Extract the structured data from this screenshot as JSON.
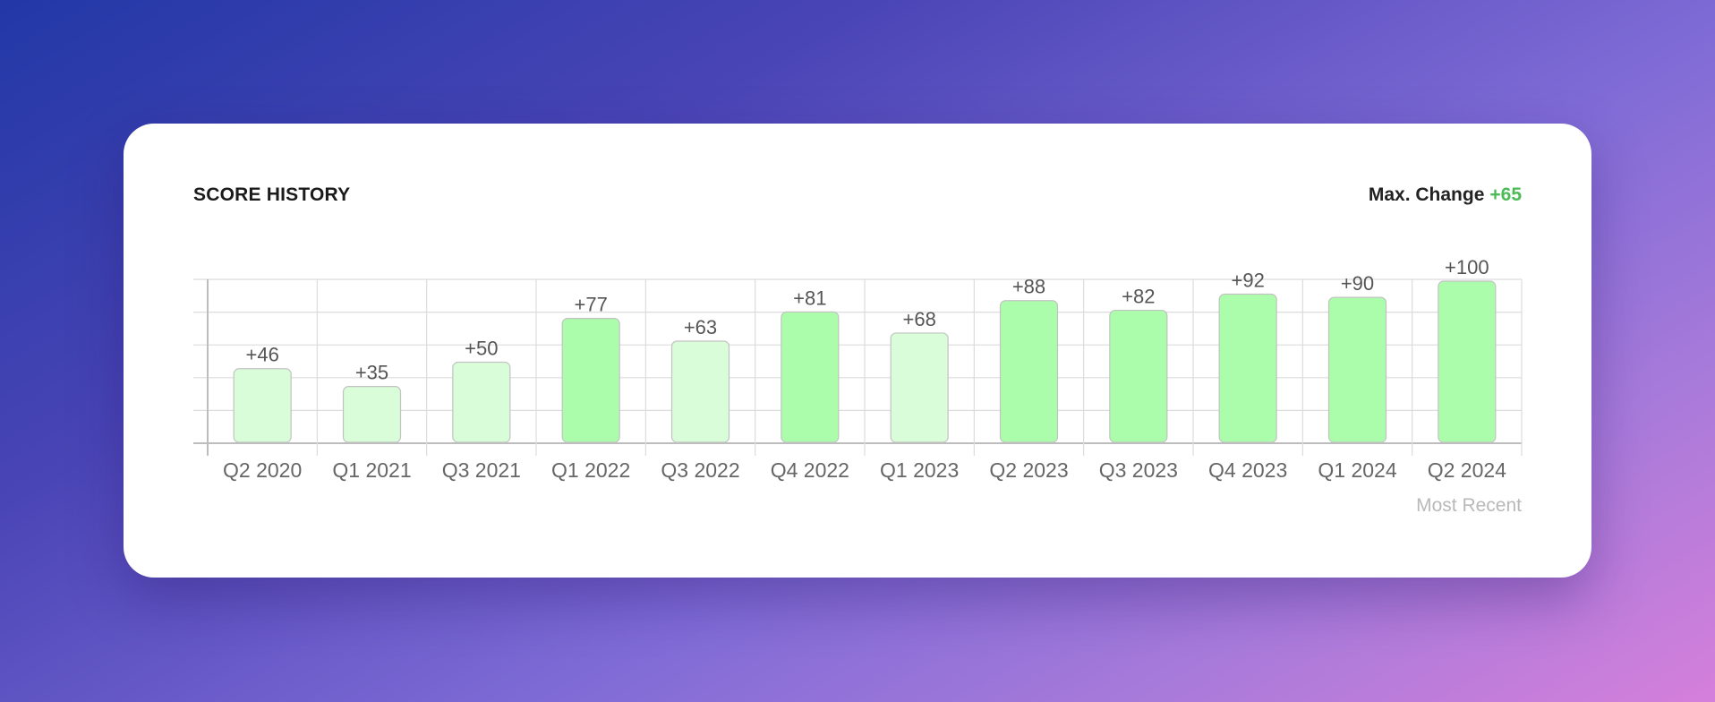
{
  "header": {
    "title": "SCORE HISTORY",
    "max_change_label": "Max. Change",
    "max_change_value": "+65"
  },
  "footer": {
    "most_recent_label": "Most Recent"
  },
  "colors": {
    "light_bar": "#d9fdd8",
    "dark_bar": "#abfdab",
    "bar_stroke": "#c2c2c2",
    "accent": "#4cbb56"
  },
  "chart_data": {
    "type": "bar",
    "title": "",
    "categories": [
      "Q2 2020",
      "Q1 2021",
      "Q3 2021",
      "Q1 2022",
      "Q3 2022",
      "Q4 2022",
      "Q1 2023",
      "Q2 2023",
      "Q3 2023",
      "Q4 2023",
      "Q1 2024",
      "Q2 2024"
    ],
    "values": [
      46,
      35,
      50,
      77,
      63,
      81,
      68,
      88,
      82,
      92,
      90,
      100
    ],
    "data_labels": [
      "+46",
      "+35",
      "+50",
      "+77",
      "+63",
      "+81",
      "+68",
      "+88",
      "+82",
      "+92",
      "+90",
      "+100"
    ],
    "highlight": [
      false,
      false,
      false,
      true,
      false,
      true,
      false,
      true,
      true,
      true,
      true,
      true
    ],
    "ylim": [
      0,
      100
    ],
    "grid": true,
    "xlabel": "",
    "ylabel": ""
  }
}
